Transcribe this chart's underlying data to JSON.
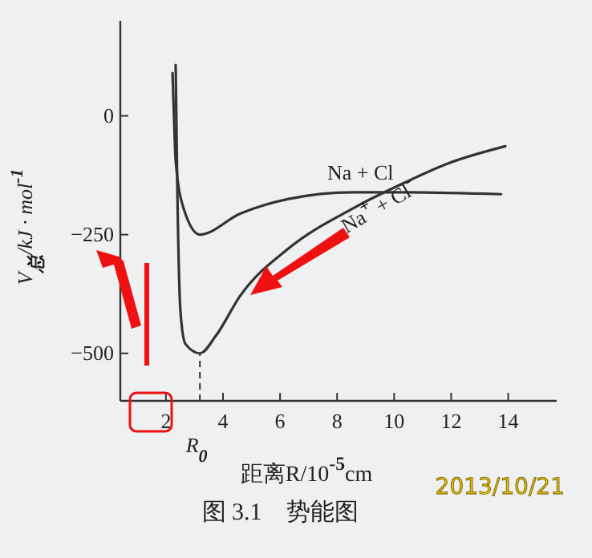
{
  "chart_data": {
    "type": "line",
    "title": "图 3.1　势能图",
    "xlabel": "距离R/10$^{-5}$cm",
    "ylabel": "V$_{总}$/kJ · mol$^{-1}$",
    "xlim": [
      0.4,
      15.7
    ],
    "ylim": [
      -600,
      200
    ],
    "xticks": [
      2,
      4,
      6,
      8,
      10,
      12,
      14
    ],
    "yticks": [
      0,
      -250,
      -500
    ],
    "grid": false,
    "line_style": "solid",
    "series": [
      {
        "name": "Na + Cl",
        "color": "#333333",
        "x": [
          2.23,
          2.28,
          2.34,
          2.62,
          3.19,
          4.6,
          6.3,
          8.55,
          10.25,
          13.75
        ],
        "values": [
          90,
          0,
          -94,
          -195,
          -250,
          -206,
          -175,
          -161,
          -161,
          -165
        ]
      },
      {
        "name": "Na$^{+}$ + Cl$^{-}$",
        "color": "#333333",
        "x": [
          2.34,
          2.4,
          2.51,
          2.68,
          3.19,
          3.75,
          4.6,
          6.3,
          8.55,
          10.25,
          11.9,
          13.9
        ],
        "values": [
          107,
          -161,
          -413,
          -480,
          -500,
          -463,
          -379,
          -279,
          -195,
          -144,
          -100,
          -64
        ]
      }
    ],
    "ref_lines": [
      {
        "axis": "x",
        "value": 3.19,
        "label": "R$_{0}$",
        "line_style": "dashed"
      }
    ],
    "annotations": [
      "2013/10/21"
    ]
  }
}
